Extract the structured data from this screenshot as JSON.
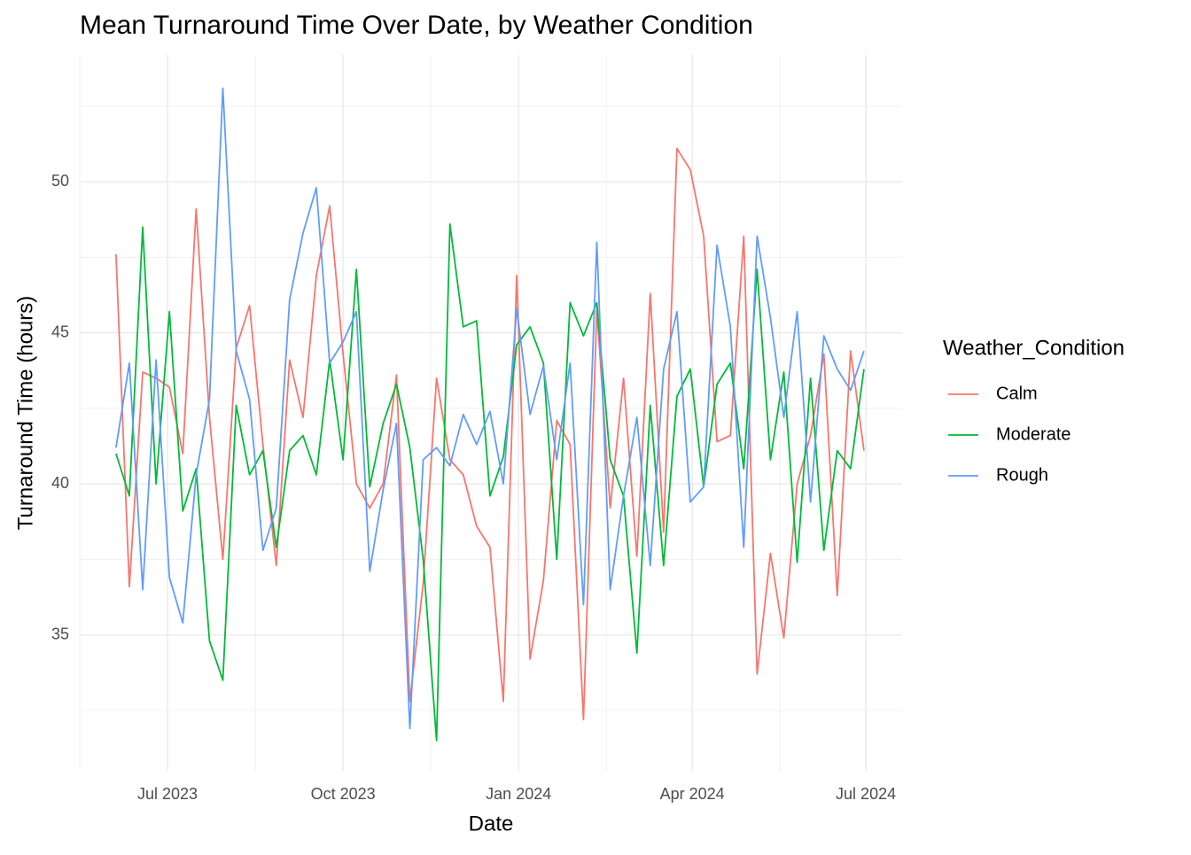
{
  "chart_data": {
    "type": "line",
    "title": "Mean Turnaround Time Over Date, by Weather Condition",
    "x_label": "Date",
    "y_label": "Turnaround Time (hours)",
    "legend_title": "Weather_Condition",
    "legend_position": "right",
    "grid": true,
    "x": [
      "2023-06-04",
      "2023-06-11",
      "2023-06-18",
      "2023-06-25",
      "2023-07-02",
      "2023-07-09",
      "2023-07-16",
      "2023-07-23",
      "2023-07-30",
      "2023-08-06",
      "2023-08-13",
      "2023-08-20",
      "2023-08-27",
      "2023-09-03",
      "2023-09-10",
      "2023-09-17",
      "2023-09-24",
      "2023-10-01",
      "2023-10-08",
      "2023-10-15",
      "2023-10-22",
      "2023-10-29",
      "2023-11-05",
      "2023-11-12",
      "2023-11-19",
      "2023-11-26",
      "2023-12-03",
      "2023-12-10",
      "2023-12-17",
      "2023-12-24",
      "2023-12-31",
      "2024-01-07",
      "2024-01-14",
      "2024-01-21",
      "2024-01-28",
      "2024-02-04",
      "2024-02-11",
      "2024-02-18",
      "2024-02-25",
      "2024-03-03",
      "2024-03-10",
      "2024-03-17",
      "2024-03-24",
      "2024-03-31",
      "2024-04-07",
      "2024-04-14",
      "2024-04-21",
      "2024-04-28",
      "2024-05-05",
      "2024-05-12",
      "2024-05-19",
      "2024-05-26",
      "2024-06-02",
      "2024-06-09",
      "2024-06-16",
      "2024-06-23",
      "2024-06-30"
    ],
    "xlim": [
      "2023-05-16",
      "2024-07-20"
    ],
    "xticks": [
      {
        "value": "2023-07-01",
        "label": "Jul 2023"
      },
      {
        "value": "2023-10-01",
        "label": "Oct 2023"
      },
      {
        "value": "2024-01-01",
        "label": "Jan 2024"
      },
      {
        "value": "2024-04-01",
        "label": "Apr 2024"
      },
      {
        "value": "2024-07-01",
        "label": "Jul 2024"
      }
    ],
    "ylim": [
      30.5,
      54.2
    ],
    "yticks": [
      35,
      40,
      45,
      50
    ],
    "series": [
      {
        "name": "Calm",
        "color": "#f8766d",
        "values": [
          47.6,
          36.6,
          43.7,
          43.5,
          43.2,
          41.0,
          49.1,
          42.2,
          37.5,
          44.5,
          45.9,
          41.3,
          37.3,
          44.1,
          42.2,
          46.9,
          49.2,
          44.3,
          40.0,
          39.2,
          40.0,
          43.6,
          32.8,
          36.7,
          43.5,
          40.8,
          40.3,
          38.6,
          37.9,
          32.8,
          46.9,
          34.2,
          36.8,
          42.1,
          41.3,
          32.2,
          45.8,
          39.2,
          43.5,
          37.6,
          46.3,
          38.4,
          51.1,
          50.4,
          48.2,
          41.4,
          41.6,
          48.2,
          33.7,
          37.7,
          34.9,
          40.0,
          41.6,
          44.3,
          36.3,
          44.4,
          41.1
        ]
      },
      {
        "name": "Moderate",
        "color": "#00ba38",
        "values": [
          41.0,
          39.6,
          48.5,
          40.0,
          45.7,
          39.1,
          40.5,
          34.8,
          33.5,
          42.6,
          40.3,
          41.1,
          37.9,
          41.1,
          41.6,
          40.3,
          44.1,
          40.8,
          47.1,
          39.9,
          42.0,
          43.3,
          41.2,
          37.5,
          31.5,
          48.6,
          45.2,
          45.4,
          39.6,
          40.9,
          44.6,
          45.2,
          44.0,
          37.5,
          46.0,
          44.9,
          46.0,
          40.8,
          39.6,
          34.4,
          42.6,
          37.3,
          42.9,
          43.8,
          39.9,
          43.3,
          44.0,
          40.5,
          47.1,
          40.8,
          43.7,
          37.4,
          43.5,
          37.8,
          41.1,
          40.5,
          43.8
        ]
      },
      {
        "name": "Rough",
        "color": "#619cff",
        "values": [
          41.2,
          44.0,
          36.5,
          44.1,
          36.9,
          35.4,
          40.3,
          42.8,
          53.1,
          44.4,
          42.8,
          37.8,
          39.2,
          46.1,
          48.3,
          49.8,
          44.0,
          44.7,
          45.7,
          37.1,
          39.8,
          42.0,
          31.9,
          40.8,
          41.2,
          40.6,
          42.3,
          41.3,
          42.4,
          40.0,
          45.8,
          42.3,
          43.9,
          40.8,
          44.0,
          36.0,
          48.0,
          36.5,
          39.6,
          42.2,
          37.3,
          43.8,
          45.7,
          39.4,
          39.9,
          47.9,
          45.2,
          37.9,
          48.2,
          45.5,
          42.2,
          45.7,
          39.4,
          44.9,
          43.8,
          43.1,
          44.4
        ]
      }
    ]
  }
}
